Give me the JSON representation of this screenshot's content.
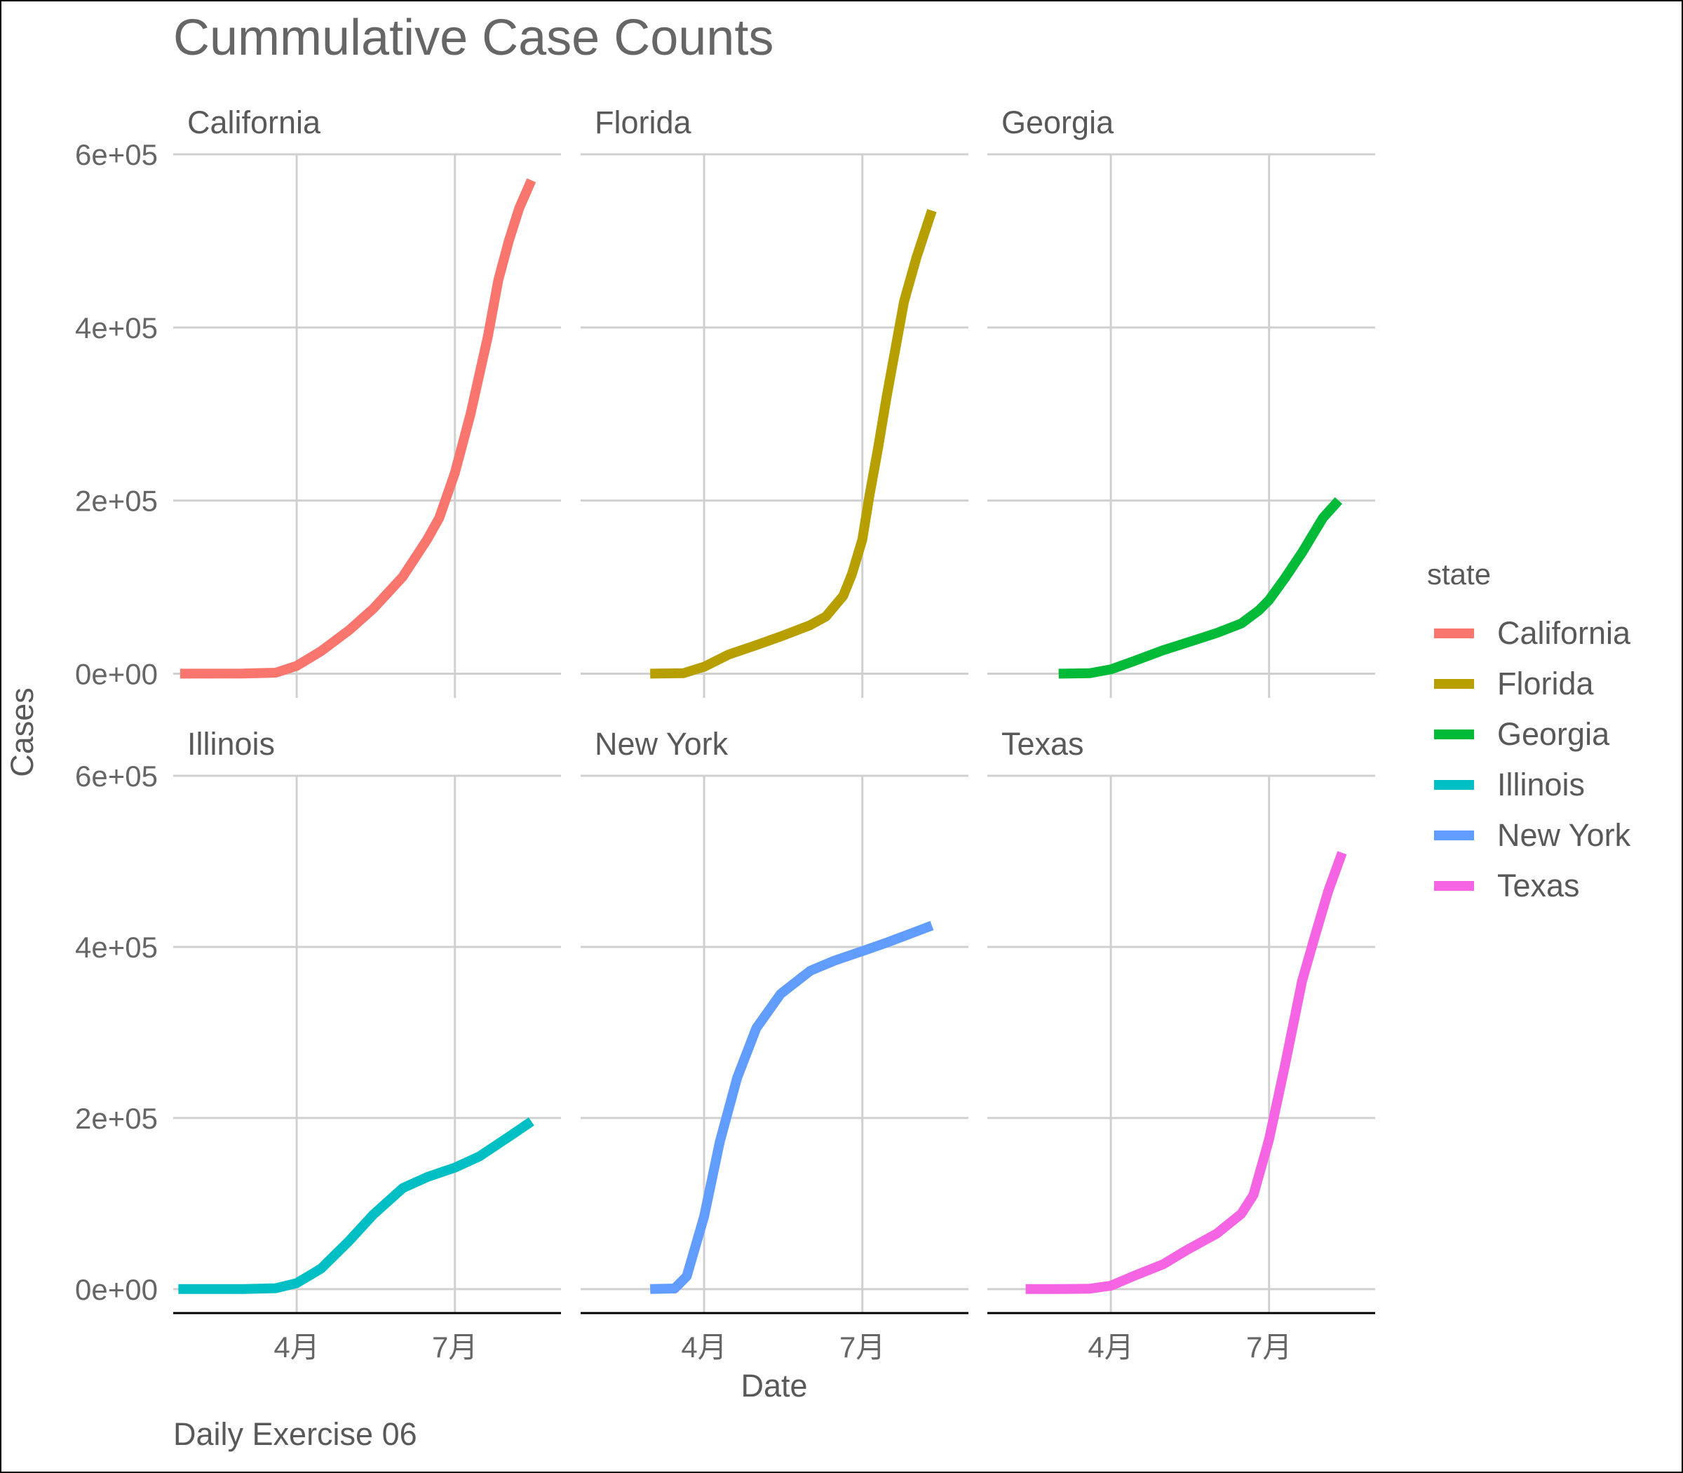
{
  "chart_data": {
    "type": "line",
    "title": "Cummulative Case Counts",
    "caption": "Daily Exercise 06",
    "xlabel": "Date",
    "ylabel": "Cases",
    "legend": {
      "title": "state",
      "position": "right"
    },
    "x_ticks": [
      {
        "date": "2020-04-01",
        "label": "4月"
      },
      {
        "date": "2020-07-01",
        "label": "7月"
      }
    ],
    "xlim": [
      "2020-01-21",
      "2020-08-31"
    ],
    "y_ticks": [
      {
        "value": 0,
        "label": "0e+00"
      },
      {
        "value": 200000,
        "label": "2e+05"
      },
      {
        "value": 400000,
        "label": "4e+05"
      },
      {
        "value": 600000,
        "label": "6e+05"
      }
    ],
    "ylim": [
      -28000,
      600000
    ],
    "grid": true,
    "facet_layout": {
      "rows": 2,
      "cols": 3
    },
    "series": [
      {
        "name": "California",
        "color": "#F8766D",
        "points": [
          [
            "2020-01-25",
            0
          ],
          [
            "2020-03-01",
            100
          ],
          [
            "2020-03-20",
            1200
          ],
          [
            "2020-04-01",
            9000
          ],
          [
            "2020-04-15",
            26000
          ],
          [
            "2020-05-01",
            50000
          ],
          [
            "2020-05-15",
            75000
          ],
          [
            "2020-06-01",
            112000
          ],
          [
            "2020-06-15",
            155000
          ],
          [
            "2020-06-22",
            180000
          ],
          [
            "2020-07-01",
            232000
          ],
          [
            "2020-07-10",
            300000
          ],
          [
            "2020-07-20",
            390000
          ],
          [
            "2020-07-26",
            455000
          ],
          [
            "2020-08-01",
            500000
          ],
          [
            "2020-08-07",
            538000
          ],
          [
            "2020-08-14",
            570000
          ]
        ]
      },
      {
        "name": "Florida",
        "color": "#B79F00",
        "points": [
          [
            "2020-03-01",
            0
          ],
          [
            "2020-03-20",
            500
          ],
          [
            "2020-04-01",
            8000
          ],
          [
            "2020-04-15",
            22000
          ],
          [
            "2020-05-01",
            33000
          ],
          [
            "2020-05-15",
            43000
          ],
          [
            "2020-06-01",
            56000
          ],
          [
            "2020-06-10",
            66000
          ],
          [
            "2020-06-20",
            90000
          ],
          [
            "2020-06-25",
            115000
          ],
          [
            "2020-07-01",
            155000
          ],
          [
            "2020-07-05",
            205000
          ],
          [
            "2020-07-10",
            260000
          ],
          [
            "2020-07-15",
            320000
          ],
          [
            "2020-07-20",
            375000
          ],
          [
            "2020-07-25",
            430000
          ],
          [
            "2020-08-01",
            480000
          ],
          [
            "2020-08-10",
            535000
          ]
        ]
      },
      {
        "name": "Georgia",
        "color": "#00BA38",
        "points": [
          [
            "2020-03-02",
            0
          ],
          [
            "2020-03-20",
            500
          ],
          [
            "2020-04-01",
            5000
          ],
          [
            "2020-04-15",
            15000
          ],
          [
            "2020-05-01",
            27000
          ],
          [
            "2020-05-15",
            36000
          ],
          [
            "2020-06-01",
            47000
          ],
          [
            "2020-06-15",
            58000
          ],
          [
            "2020-06-25",
            73000
          ],
          [
            "2020-07-01",
            85000
          ],
          [
            "2020-07-10",
            110000
          ],
          [
            "2020-07-20",
            140000
          ],
          [
            "2020-08-01",
            180000
          ],
          [
            "2020-08-10",
            200000
          ]
        ]
      },
      {
        "name": "Illinois",
        "color": "#00BFC4",
        "points": [
          [
            "2020-01-24",
            0
          ],
          [
            "2020-03-01",
            50
          ],
          [
            "2020-03-20",
            1000
          ],
          [
            "2020-04-01",
            7000
          ],
          [
            "2020-04-15",
            24000
          ],
          [
            "2020-05-01",
            56000
          ],
          [
            "2020-05-15",
            87000
          ],
          [
            "2020-06-01",
            118000
          ],
          [
            "2020-06-15",
            131000
          ],
          [
            "2020-07-01",
            142000
          ],
          [
            "2020-07-15",
            155000
          ],
          [
            "2020-08-01",
            178000
          ],
          [
            "2020-08-14",
            196000
          ]
        ]
      },
      {
        "name": "New York",
        "color": "#619CFF",
        "points": [
          [
            "2020-03-01",
            0
          ],
          [
            "2020-03-15",
            700
          ],
          [
            "2020-03-22",
            15000
          ],
          [
            "2020-04-01",
            85000
          ],
          [
            "2020-04-10",
            172000
          ],
          [
            "2020-04-20",
            247000
          ],
          [
            "2020-05-01",
            305000
          ],
          [
            "2020-05-15",
            345000
          ],
          [
            "2020-06-01",
            372000
          ],
          [
            "2020-06-15",
            384000
          ],
          [
            "2020-07-01",
            395000
          ],
          [
            "2020-07-15",
            405000
          ],
          [
            "2020-08-01",
            418000
          ],
          [
            "2020-08-10",
            425000
          ]
        ]
      },
      {
        "name": "Texas",
        "color": "#F564E3",
        "points": [
          [
            "2020-02-12",
            0
          ],
          [
            "2020-03-01",
            0
          ],
          [
            "2020-03-20",
            500
          ],
          [
            "2020-04-01",
            4000
          ],
          [
            "2020-04-15",
            16000
          ],
          [
            "2020-05-01",
            29000
          ],
          [
            "2020-05-15",
            46000
          ],
          [
            "2020-06-01",
            65000
          ],
          [
            "2020-06-15",
            88000
          ],
          [
            "2020-06-22",
            110000
          ],
          [
            "2020-07-01",
            175000
          ],
          [
            "2020-07-10",
            260000
          ],
          [
            "2020-07-20",
            360000
          ],
          [
            "2020-07-27",
            410000
          ],
          [
            "2020-08-04",
            465000
          ],
          [
            "2020-08-12",
            510000
          ]
        ]
      }
    ]
  }
}
